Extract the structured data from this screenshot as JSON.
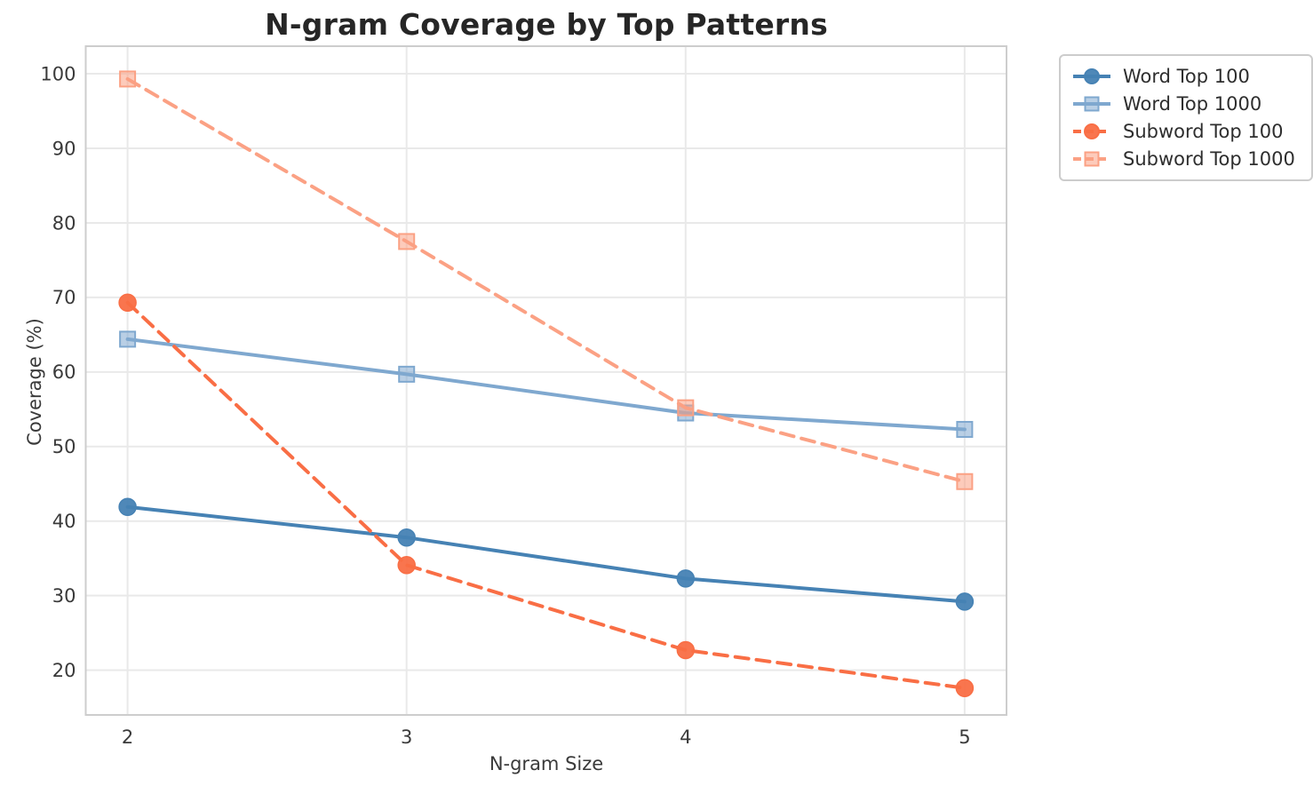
{
  "title": "N-gram Coverage by Top Patterns",
  "chart_data": {
    "type": "line",
    "title": "N-gram Coverage by Top Patterns",
    "xlabel": "N-gram Size",
    "ylabel": "Coverage (%)",
    "x": [
      2,
      3,
      4,
      5
    ],
    "xticks": [
      2,
      3,
      4,
      5
    ],
    "yticks": [
      20,
      30,
      40,
      50,
      60,
      70,
      80,
      90,
      100
    ],
    "xlim": [
      1.85,
      5.15
    ],
    "ylim": [
      14.0,
      103.7
    ],
    "grid": true,
    "legend_position": "outside upper right",
    "series": [
      {
        "name": "Word Top 100",
        "color": "#4682b4",
        "linestyle": "solid",
        "marker": "circle",
        "values": [
          41.9,
          37.8,
          32.3,
          29.2
        ]
      },
      {
        "name": "Word Top 1000",
        "color": "#7fa8cf",
        "linestyle": "solid",
        "marker": "square",
        "values": [
          64.4,
          59.7,
          54.5,
          52.3
        ]
      },
      {
        "name": "Subword Top 100",
        "color": "#f96e45",
        "linestyle": "dashed",
        "marker": "circle",
        "values": [
          69.3,
          34.1,
          22.7,
          17.6
        ]
      },
      {
        "name": "Subword Top 1000",
        "color": "#fba184",
        "linestyle": "dashed",
        "marker": "square",
        "values": [
          99.3,
          77.5,
          55.2,
          45.3
        ]
      }
    ],
    "colors": {
      "grid": "#e9e9e9",
      "spine": "#cdcdcd",
      "tick_label": "#3a3a3a",
      "title": "#262626"
    }
  }
}
